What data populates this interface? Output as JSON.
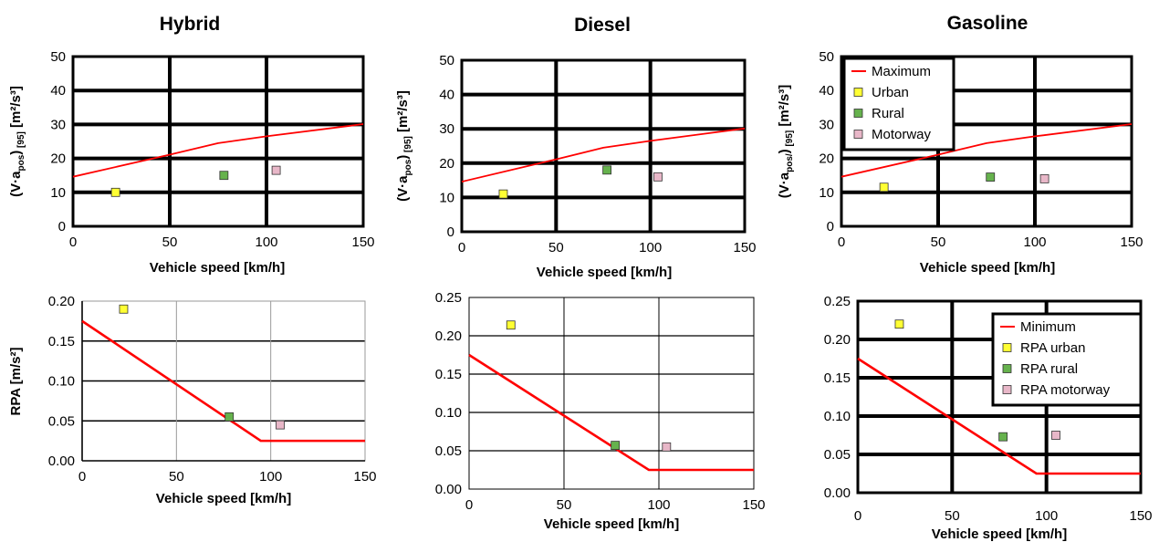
{
  "colors": {
    "line": "#ff0000",
    "urban": "#ffff33",
    "rural": "#66b24d",
    "motorway": "#e8b7c8",
    "grid": "#000000"
  },
  "chart_data": [
    {
      "id": "hybrid_va",
      "type": "scatter",
      "title": "Hybrid",
      "xlabel": "Vehicle speed [km/h]",
      "ylabel": {
        "main": "(V·a",
        "sub1": "pos",
        "mid": ")",
        "sub2": "[95]",
        "unit": " [m²/s³]"
      },
      "xlim": [
        0,
        150
      ],
      "ylim": [
        0,
        50
      ],
      "xticks": [
        0,
        50,
        100,
        150
      ],
      "yticks": [
        0,
        10,
        20,
        30,
        40,
        50
      ],
      "yformat": "int",
      "grid": "thick",
      "line": {
        "x": [
          0,
          50,
          75,
          100,
          150
        ],
        "y": [
          14.6,
          21.1,
          24.5,
          26.5,
          30.1
        ]
      },
      "points": [
        {
          "series": "urban",
          "x": 22,
          "y": 10
        },
        {
          "series": "rural",
          "x": 78,
          "y": 15
        },
        {
          "series": "motorway",
          "x": 105,
          "y": 16.5
        }
      ],
      "legend": []
    },
    {
      "id": "diesel_va",
      "type": "scatter",
      "title": "Diesel",
      "xlabel": "Vehicle speed [km/h]",
      "ylabel": {
        "main": "(V·a",
        "sub1": "pos",
        "mid": ")",
        "sub2": "[95]",
        "unit": " [m²/s³]"
      },
      "xlim": [
        0,
        150
      ],
      "ylim": [
        0,
        50
      ],
      "xticks": [
        0,
        50,
        100,
        150
      ],
      "yticks": [
        0,
        10,
        20,
        30,
        40,
        50
      ],
      "yformat": "int",
      "grid": "thick",
      "line": {
        "x": [
          0,
          50,
          75,
          100,
          150
        ],
        "y": [
          14.6,
          21.1,
          24.5,
          26.5,
          30.1
        ]
      },
      "points": [
        {
          "series": "urban",
          "x": 22,
          "y": 11
        },
        {
          "series": "rural",
          "x": 77,
          "y": 18
        },
        {
          "series": "motorway",
          "x": 104,
          "y": 16
        }
      ],
      "legend": []
    },
    {
      "id": "gasoline_va",
      "type": "scatter",
      "title": "Gasoline",
      "xlabel": "Vehicle speed [km/h]",
      "ylabel": {
        "main": "(V·a",
        "sub1": "pos/",
        "mid": ")",
        "sub2": "[95]",
        "unit": " [m²/s³]"
      },
      "xlim": [
        0,
        150
      ],
      "ylim": [
        0,
        50
      ],
      "xticks": [
        0,
        50,
        100,
        150
      ],
      "yticks": [
        0,
        10,
        20,
        30,
        40,
        50
      ],
      "yformat": "int",
      "grid": "thick",
      "line": {
        "x": [
          0,
          50,
          75,
          100,
          150
        ],
        "y": [
          14.6,
          21.1,
          24.5,
          26.5,
          30.1
        ]
      },
      "points": [
        {
          "series": "urban",
          "x": 22,
          "y": 11.5
        },
        {
          "series": "rural",
          "x": 77,
          "y": 14.5
        },
        {
          "series": "motorway",
          "x": 105,
          "y": 14
        }
      ],
      "legend": [
        {
          "series": "line",
          "label": "Maximum"
        },
        {
          "series": "urban",
          "label": "Urban"
        },
        {
          "series": "rural",
          "label": "Rural"
        },
        {
          "series": "motorway",
          "label": "Motorway"
        }
      ]
    },
    {
      "id": "hybrid_rpa",
      "type": "scatter",
      "title": "",
      "xlabel": "Vehicle speed [km/h]",
      "ylabel": {
        "main": "RPA [m/s²]"
      },
      "xlim": [
        0,
        150
      ],
      "ylim": [
        0,
        0.2
      ],
      "xticks": [
        0,
        50,
        100,
        150
      ],
      "yticks": [
        0,
        0.05,
        0.1,
        0.15,
        0.2
      ],
      "yformat": "2dp",
      "grid": "mixed",
      "line": {
        "x": [
          0,
          94.7,
          150
        ],
        "y": [
          0.175,
          0.025,
          0.025
        ]
      },
      "points": [
        {
          "series": "urban",
          "x": 22,
          "y": 0.19
        },
        {
          "series": "rural",
          "x": 78,
          "y": 0.055
        },
        {
          "series": "motorway",
          "x": 105,
          "y": 0.045
        }
      ],
      "legend": []
    },
    {
      "id": "diesel_rpa",
      "type": "scatter",
      "title": "",
      "xlabel": "Vehicle speed [km/h]",
      "ylabel": {
        "main": ""
      },
      "xlim": [
        0,
        150
      ],
      "ylim": [
        0,
        0.25
      ],
      "xticks": [
        0,
        50,
        100,
        150
      ],
      "yticks": [
        0,
        0.05,
        0.1,
        0.15,
        0.2,
        0.25
      ],
      "yformat": "2dp",
      "grid": "thin",
      "line": {
        "x": [
          0,
          94.7,
          150
        ],
        "y": [
          0.175,
          0.025,
          0.025
        ]
      },
      "points": [
        {
          "series": "urban",
          "x": 22,
          "y": 0.214
        },
        {
          "series": "rural",
          "x": 77,
          "y": 0.057
        },
        {
          "series": "motorway",
          "x": 104,
          "y": 0.055
        }
      ],
      "legend": []
    },
    {
      "id": "gasoline_rpa",
      "type": "scatter",
      "title": "",
      "xlabel": "Vehicle speed [km/h]",
      "ylabel": {
        "main": ""
      },
      "xlim": [
        0,
        150
      ],
      "ylim": [
        0,
        0.25
      ],
      "xticks": [
        0,
        50,
        100,
        150
      ],
      "yticks": [
        0,
        0.05,
        0.1,
        0.15,
        0.2,
        0.25
      ],
      "yformat": "2dp",
      "grid": "thick",
      "line": {
        "x": [
          0,
          94.7,
          150
        ],
        "y": [
          0.175,
          0.025,
          0.025
        ]
      },
      "points": [
        {
          "series": "urban",
          "x": 22,
          "y": 0.22
        },
        {
          "series": "rural",
          "x": 77,
          "y": 0.073
        },
        {
          "series": "motorway",
          "x": 105,
          "y": 0.075
        }
      ],
      "legend": [
        {
          "series": "line",
          "label": "Minimum"
        },
        {
          "series": "urban",
          "label": "RPA urban"
        },
        {
          "series": "rural",
          "label": "RPA rural"
        },
        {
          "series": "motorway",
          "label": "RPA motorway"
        }
      ]
    }
  ]
}
